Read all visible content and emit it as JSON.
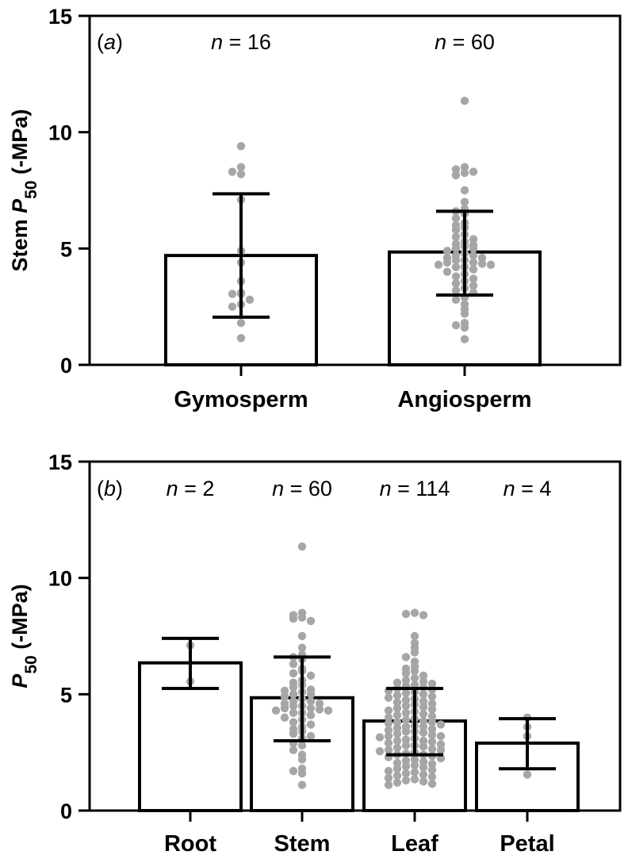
{
  "chart_data": [
    {
      "type": "bar",
      "panel_label": "(a)",
      "panel_letter": "a",
      "ylabel_prefix": "Stem ",
      "ylabel_symbol": "P",
      "ylabel_subscript": "50",
      "ylabel_suffix": " (-MPa)",
      "ylim": [
        0,
        15
      ],
      "yticks": [
        "0",
        "5",
        "10",
        "15"
      ],
      "categories": [
        "Gymosperm",
        "Angiosperm"
      ],
      "n_labels": [
        "n = 16",
        "n = 60"
      ],
      "values": [
        4.7,
        4.85
      ],
      "error_low": [
        2.05,
        3.0
      ],
      "error_high": [
        7.35,
        6.6
      ],
      "points": [
        [
          9.4,
          8.5,
          8.3,
          8.2,
          7.1,
          4.9,
          4.4,
          3.6,
          3.1,
          3.05,
          3.05,
          2.8,
          2.6,
          2.5,
          1.8,
          1.15
        ],
        [
          11.35,
          8.5,
          8.4,
          8.3,
          8.25,
          8.15,
          7.5,
          7.0,
          6.7,
          6.6,
          6.5,
          6.3,
          6.1,
          6.0,
          5.9,
          5.8,
          5.6,
          5.5,
          5.4,
          5.3,
          5.2,
          5.15,
          5.1,
          5.0,
          5.0,
          4.9,
          4.8,
          4.7,
          4.7,
          4.6,
          4.6,
          4.5,
          4.5,
          4.4,
          4.4,
          4.35,
          4.3,
          4.3,
          4.2,
          4.2,
          4.1,
          4.0,
          3.9,
          3.8,
          3.7,
          3.6,
          3.5,
          3.4,
          3.3,
          3.2,
          3.1,
          2.9,
          2.8,
          2.6,
          2.4,
          2.2,
          1.8,
          1.7,
          1.6,
          1.1
        ]
      ]
    },
    {
      "type": "bar",
      "panel_label": "(b)",
      "panel_letter": "b",
      "ylabel_prefix": "",
      "ylabel_symbol": "P",
      "ylabel_subscript": "50",
      "ylabel_suffix": " (-MPa)",
      "ylim": [
        0,
        15
      ],
      "yticks": [
        "0",
        "5",
        "10",
        "15"
      ],
      "categories": [
        "Root",
        "Stem",
        "Leaf",
        "Petal"
      ],
      "n_labels": [
        "n = 2",
        "n = 60",
        "n = 114",
        "n = 4"
      ],
      "values": [
        6.35,
        4.85,
        3.85,
        2.9
      ],
      "error_low": [
        5.25,
        3.0,
        2.4,
        1.8
      ],
      "error_high": [
        7.4,
        6.6,
        5.25,
        3.95
      ],
      "points": [
        [
          7.1,
          5.55
        ],
        [
          11.35,
          8.5,
          8.4,
          8.3,
          8.25,
          8.15,
          7.5,
          7.0,
          6.7,
          6.6,
          6.5,
          6.3,
          6.1,
          6.0,
          5.9,
          5.8,
          5.6,
          5.5,
          5.4,
          5.3,
          5.2,
          5.15,
          5.1,
          5.0,
          5.0,
          4.9,
          4.8,
          4.7,
          4.7,
          4.6,
          4.6,
          4.5,
          4.5,
          4.4,
          4.4,
          4.35,
          4.3,
          4.3,
          4.2,
          4.2,
          4.1,
          4.0,
          3.9,
          3.8,
          3.7,
          3.6,
          3.5,
          3.4,
          3.3,
          3.2,
          3.1,
          2.9,
          2.8,
          2.6,
          2.4,
          2.2,
          1.8,
          1.7,
          1.6,
          1.1
        ],
        [
          8.5,
          8.45,
          8.4,
          7.5,
          7.2,
          7.0,
          6.8,
          6.6,
          6.4,
          6.2,
          6.1,
          6.0,
          5.9,
          5.8,
          5.7,
          5.6,
          5.55,
          5.5,
          5.45,
          5.4,
          5.35,
          5.3,
          5.25,
          5.2,
          5.15,
          5.1,
          5.05,
          5.0,
          4.95,
          4.9,
          4.85,
          4.8,
          4.75,
          4.7,
          4.65,
          4.6,
          4.55,
          4.5,
          4.45,
          4.4,
          4.35,
          4.3,
          4.25,
          4.2,
          4.15,
          4.1,
          4.05,
          4.0,
          3.95,
          3.9,
          3.85,
          3.8,
          3.75,
          3.7,
          3.65,
          3.6,
          3.55,
          3.5,
          3.45,
          3.4,
          3.35,
          3.3,
          3.25,
          3.2,
          3.15,
          3.1,
          3.05,
          3.0,
          2.95,
          2.9,
          2.85,
          2.8,
          2.75,
          2.7,
          2.65,
          2.6,
          2.55,
          2.5,
          2.45,
          2.4,
          2.35,
          2.3,
          2.25,
          2.2,
          2.15,
          2.1,
          2.05,
          2.0,
          1.95,
          1.9,
          1.85,
          1.8,
          1.75,
          1.7,
          1.65,
          1.6,
          1.55,
          1.5,
          1.45,
          1.4,
          1.35,
          1.3,
          1.25,
          1.2,
          1.15,
          1.1,
          3.8,
          3.6,
          3.4,
          3.2,
          3.0,
          2.8,
          2.6,
          2.4
        ],
        [
          4.0,
          3.6,
          3.2,
          1.55
        ]
      ]
    }
  ]
}
